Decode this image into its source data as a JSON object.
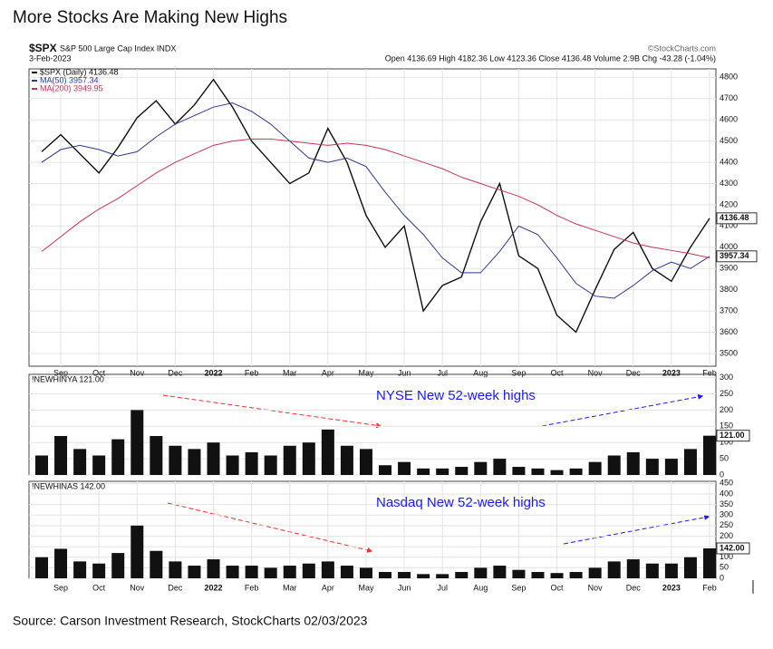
{
  "title": "More Stocks Are Making New Highs",
  "source": "Source: Carson Investment Research, StockCharts 02/03/2023",
  "chart_data": [
    {
      "type": "line",
      "symbol": "$SPX",
      "subtitle": "S&P 500 Large Cap Index INDX",
      "date": "3-Feb-2023",
      "quote": "Open 4136.69  High 4182.36  Low 4123.36  Close 4136.48  Volume 2.9B  Chg -43.28 (-1.04%)",
      "credit": "©StockCharts.com",
      "categories": [
        null,
        "Sep",
        null,
        "Oct",
        null,
        "Nov",
        null,
        "Dec",
        null,
        "2022",
        null,
        "Feb",
        null,
        "Mar",
        null,
        "Apr",
        null,
        "May",
        null,
        "Jun",
        null,
        "Jul",
        null,
        "Aug",
        null,
        "Sep",
        null,
        "Oct",
        null,
        "Nov",
        null,
        "Dec",
        null,
        "2023",
        null,
        "Feb"
      ],
      "series": [
        {
          "name": "$SPX (Daily) 4136.48",
          "color": "#111111",
          "values": [
            4450,
            4530,
            4440,
            4350,
            4470,
            4610,
            4690,
            4580,
            4670,
            4790,
            4660,
            4500,
            4400,
            4300,
            4350,
            4560,
            4400,
            4150,
            4000,
            4100,
            3700,
            3820,
            3860,
            4120,
            4300,
            3960,
            3900,
            3680,
            3600,
            3800,
            3990,
            4070,
            3900,
            3840,
            4000,
            4136.48
          ]
        },
        {
          "name": "MA(50) 3957.34",
          "color": "#2e3a8c",
          "values": [
            4400,
            4460,
            4480,
            4460,
            4430,
            4450,
            4520,
            4580,
            4620,
            4660,
            4680,
            4640,
            4580,
            4500,
            4420,
            4400,
            4420,
            4380,
            4260,
            4150,
            4060,
            3950,
            3880,
            3880,
            3980,
            4100,
            4060,
            3950,
            3830,
            3770,
            3760,
            3820,
            3890,
            3930,
            3900,
            3957.34
          ]
        },
        {
          "name": "MA(200) 3949.95",
          "color": "#cc3355",
          "values": [
            3980,
            4050,
            4120,
            4180,
            4230,
            4290,
            4350,
            4400,
            4440,
            4480,
            4500,
            4510,
            4510,
            4500,
            4490,
            4480,
            4490,
            4480,
            4460,
            4430,
            4400,
            4370,
            4330,
            4300,
            4270,
            4240,
            4200,
            4150,
            4110,
            4080,
            4050,
            4020,
            4000,
            3985,
            3970,
            3949.95
          ]
        }
      ],
      "ylim": [
        3440,
        4840
      ],
      "yticks": [
        3500,
        3600,
        3700,
        3800,
        3900,
        4000,
        4100,
        4200,
        4300,
        4400,
        4500,
        4600,
        4700,
        4800
      ],
      "price_tags": [
        0,
        1
      ]
    },
    {
      "type": "bar",
      "label": "!NEWHINYA 121.00",
      "annotation": "NYSE New 52-week highs",
      "color": "#111111",
      "values": [
        60,
        120,
        80,
        60,
        110,
        200,
        120,
        90,
        80,
        100,
        60,
        70,
        60,
        90,
        100,
        140,
        90,
        80,
        30,
        40,
        20,
        20,
        25,
        40,
        50,
        25,
        20,
        15,
        20,
        40,
        60,
        70,
        50,
        50,
        80,
        121
      ],
      "tag": "121.00",
      "ylim": [
        0,
        310
      ],
      "yticks": [
        0,
        50,
        100,
        150,
        200,
        250,
        300
      ]
    },
    {
      "type": "bar",
      "label": "!NEWHINAS 142.00",
      "annotation": "Nasdaq New 52-week highs",
      "color": "#111111",
      "categories": [
        null,
        "Sep",
        null,
        "Oct",
        null,
        "Nov",
        null,
        "Dec",
        null,
        "2022",
        null,
        "Feb",
        null,
        "Mar",
        null,
        "Apr",
        null,
        "May",
        null,
        "Jun",
        null,
        "Jul",
        null,
        "Aug",
        null,
        "Sep",
        null,
        "Oct",
        null,
        "Nov",
        null,
        "Dec",
        null,
        "2023",
        null,
        "Feb"
      ],
      "values": [
        100,
        140,
        80,
        70,
        120,
        250,
        130,
        80,
        60,
        90,
        60,
        60,
        50,
        60,
        70,
        80,
        60,
        50,
        30,
        30,
        20,
        20,
        30,
        50,
        60,
        40,
        30,
        25,
        30,
        50,
        80,
        90,
        70,
        70,
        100,
        142
      ],
      "tag": "142.00",
      "ylim": [
        0,
        460
      ],
      "yticks": [
        0,
        50,
        100,
        150,
        200,
        250,
        300,
        350,
        400,
        450
      ]
    }
  ]
}
